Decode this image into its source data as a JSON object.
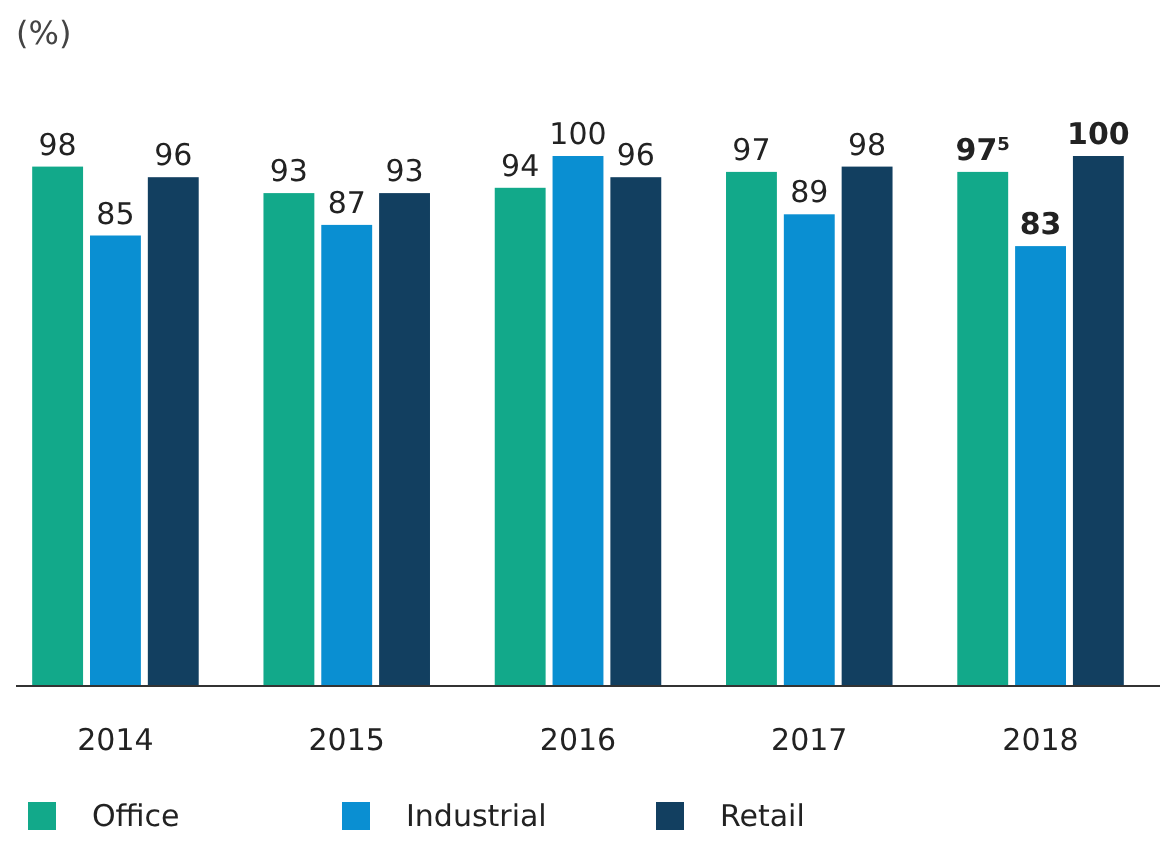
{
  "chart_data": {
    "type": "bar",
    "ylabel": "(%)",
    "categories": [
      "2014",
      "2015",
      "2016",
      "2017",
      "2018"
    ],
    "series": [
      {
        "name": "Office",
        "color": "#12a98a",
        "values": [
          98,
          93,
          94,
          97,
          97
        ],
        "value_labels": [
          "98",
          "93",
          "94",
          "97",
          "97$^{5}$"
        ]
      },
      {
        "name": "Industrial",
        "color": "#0a8fd2",
        "values": [
          85,
          87,
          100,
          89,
          83
        ]
      },
      {
        "name": "Retail",
        "color": "#123f60",
        "values": [
          96,
          93,
          96,
          98,
          100
        ]
      }
    ],
    "ylim": [
      0,
      100
    ],
    "data_labels": true,
    "legend": "bottom left"
  }
}
